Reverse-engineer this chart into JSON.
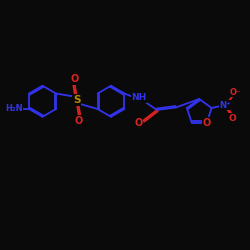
{
  "background_color": "#0a0a0a",
  "bond_color": "#3333ee",
  "atom_colors": {
    "N": "#3333ee",
    "O": "#dd2222",
    "S": "#bb8800",
    "C": "#3333ee",
    "H": "#3333ee"
  },
  "figsize": [
    2.5,
    2.5
  ],
  "dpi": 100,
  "xlim": [
    0,
    10
  ],
  "ylim": [
    0,
    10
  ]
}
